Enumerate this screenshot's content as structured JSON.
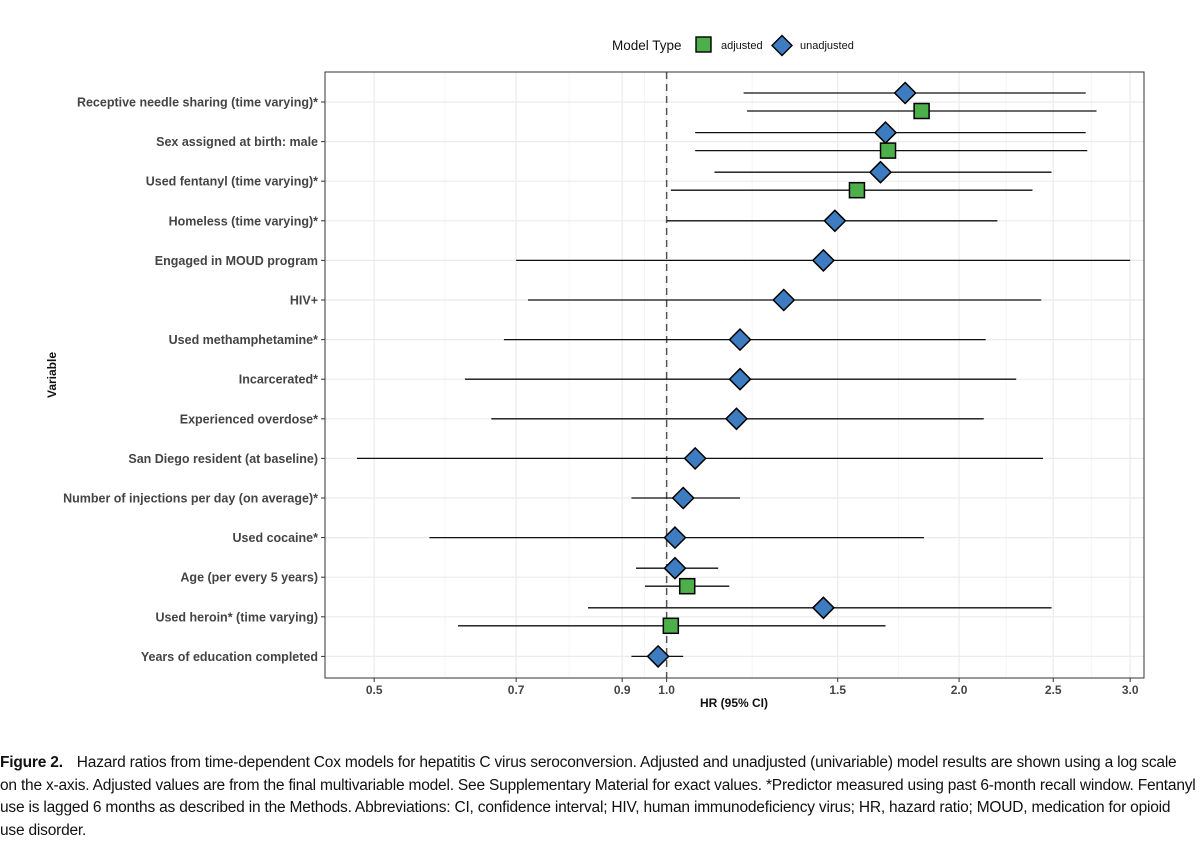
{
  "chart_data": {
    "type": "forest",
    "title": "",
    "xlabel": "HR (95% CI)",
    "ylabel": "Variable",
    "xscale": "log",
    "xlim": [
      0.445,
      3.1
    ],
    "xticks": [
      0.5,
      0.7,
      0.9,
      1.0,
      1.5,
      2.0,
      2.5,
      3.0
    ],
    "xtick_labels": [
      "0.5",
      "0.7",
      "0.9",
      "1.0",
      "1.5",
      "2.0",
      "2.5",
      "3.0"
    ],
    "reference_line": 1.0,
    "legend": {
      "title": "Model Type",
      "position": "top",
      "entries": [
        {
          "name": "adjusted",
          "shape": "square",
          "color": "#4daf4a"
        },
        {
          "name": "unadjusted",
          "shape": "diamond",
          "color": "#3d7cc0"
        }
      ]
    },
    "variables": [
      "Receptive needle sharing (time varying)*",
      "Sex assigned at birth: male",
      "Used fentanyl (time varying)*",
      "Homeless (time varying)*",
      "Engaged in MOUD program",
      "HIV+",
      "Used methamphetamine*",
      "Incarcerated*",
      "Experienced overdose*",
      "San Diego resident (at baseline)",
      "Number of injections per day (on average)*",
      "Used cocaine*",
      "Age (per every 5 years)",
      "Used heroin* (time varying)",
      "Years of education completed"
    ],
    "series": [
      {
        "name": "unadjusted",
        "points": [
          {
            "variable": "Receptive needle sharing (time varying)*",
            "hr": 1.76,
            "lower": 1.2,
            "upper": 2.7
          },
          {
            "variable": "Sex assigned at birth: male",
            "hr": 1.68,
            "lower": 1.07,
            "upper": 2.7
          },
          {
            "variable": "Used fentanyl (time varying)*",
            "hr": 1.66,
            "lower": 1.12,
            "upper": 2.49
          },
          {
            "variable": "Homeless (time varying)*",
            "hr": 1.49,
            "lower": 1.0,
            "upper": 2.19
          },
          {
            "variable": "Engaged in MOUD program",
            "hr": 1.45,
            "lower": 0.7,
            "upper": 3.0
          },
          {
            "variable": "HIV+",
            "hr": 1.32,
            "lower": 0.72,
            "upper": 2.43
          },
          {
            "variable": "Used methamphetamine*",
            "hr": 1.19,
            "lower": 0.68,
            "upper": 2.13
          },
          {
            "variable": "Incarcerated*",
            "hr": 1.19,
            "lower": 0.62,
            "upper": 2.29
          },
          {
            "variable": "Experienced overdose*",
            "hr": 1.18,
            "lower": 0.66,
            "upper": 2.12
          },
          {
            "variable": "San Diego resident (at baseline)",
            "hr": 1.07,
            "lower": 0.48,
            "upper": 2.44
          },
          {
            "variable": "Number of injections per day (on average)*",
            "hr": 1.04,
            "lower": 0.92,
            "upper": 1.19
          },
          {
            "variable": "Used cocaine*",
            "hr": 1.02,
            "lower": 0.57,
            "upper": 1.84
          },
          {
            "variable": "Age (per every 5 years)",
            "hr": 1.02,
            "lower": 0.93,
            "upper": 1.13
          },
          {
            "variable": "Used heroin* (time varying)",
            "hr": 1.45,
            "lower": 0.83,
            "upper": 2.49
          },
          {
            "variable": "Years of education completed",
            "hr": 0.98,
            "lower": 0.92,
            "upper": 1.04
          }
        ]
      },
      {
        "name": "adjusted",
        "points": [
          {
            "variable": "Receptive needle sharing (time varying)*",
            "hr": 1.83,
            "lower": 1.21,
            "upper": 2.77
          },
          {
            "variable": "Sex assigned at birth: male",
            "hr": 1.69,
            "lower": 1.07,
            "upper": 2.71
          },
          {
            "variable": "Used fentanyl (time varying)*",
            "hr": 1.57,
            "lower": 1.01,
            "upper": 2.38
          },
          {
            "variable": "Age (per every 5 years)",
            "hr": 1.05,
            "lower": 0.95,
            "upper": 1.16
          },
          {
            "variable": "Used heroin* (time varying)",
            "hr": 1.01,
            "lower": 0.61,
            "upper": 1.68
          }
        ]
      }
    ]
  },
  "caption": {
    "label": "Figure 2.",
    "text": "Hazard ratios from time-dependent Cox models for hepatitis C virus seroconversion. Adjusted and unadjusted (univariable) model results are shown using a log scale on the x-axis. Adjusted values are from the final multivariable model. See Supplementary Material for exact values. *Predictor measured using past 6-month recall window. Fentanyl use is lagged 6 months as described in the Methods. Abbreviations: CI, confidence interval; HIV, human immunodeficiency virus; HR, hazard ratio; MOUD, medication for opioid use disorder."
  },
  "colors": {
    "adjusted": "#4daf4a",
    "unadjusted": "#3d7cc0",
    "grid": "#ebebeb",
    "reference": "#555555"
  }
}
